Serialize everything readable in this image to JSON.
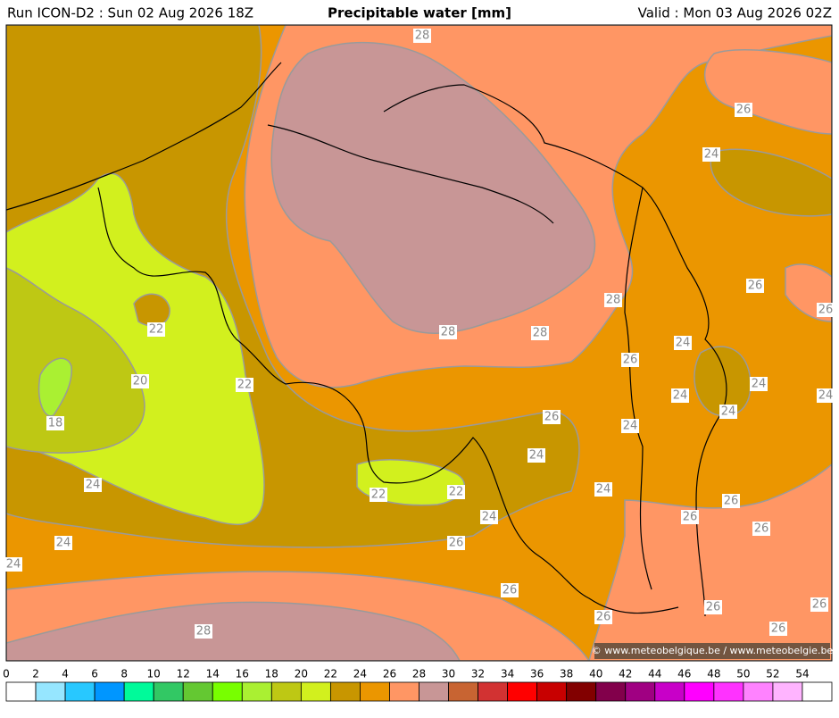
{
  "header": {
    "run": "Run ICON-D2 : Sun 02 Aug 2026 18Z",
    "title": "Precipitable water [mm]",
    "valid": "Valid : Mon 03 Aug 2026 02Z"
  },
  "contour_labels": [
    "28",
    "26",
    "24",
    "26",
    "28",
    "22",
    "28",
    "28",
    "24",
    "26",
    "20",
    "22",
    "24",
    "24",
    "24",
    "24",
    "26",
    "24",
    "18",
    "24",
    "24",
    "22",
    "22",
    "24",
    "24",
    "26",
    "26",
    "26",
    "24",
    "26",
    "24",
    "26",
    "26",
    "26",
    "26",
    "26",
    "28",
    "26"
  ],
  "copyright": "© www.meteobelgique.be / www.meteobelgie.be",
  "colorbar": {
    "ticks": [
      0,
      2,
      4,
      6,
      8,
      10,
      12,
      14,
      16,
      18,
      20,
      22,
      24,
      26,
      28,
      30,
      32,
      34,
      36,
      38,
      40,
      42,
      44,
      46,
      48,
      50,
      52,
      54
    ],
    "colors": [
      "#ffffff",
      "#96e6ff",
      "#28c8ff",
      "#0096ff",
      "#00fa9a",
      "#32c864",
      "#64c832",
      "#78ff00",
      "#aaf032",
      "#bec814",
      "#d2f01e",
      "#c89600",
      "#eb9600",
      "#ff9664",
      "#c89696",
      "#c86432",
      "#d23232",
      "#ff0000",
      "#c80000",
      "#820000",
      "#82004b",
      "#a00082",
      "#c800c8",
      "#ff00ff",
      "#ff32ff",
      "#ff82ff",
      "#ffb4ff",
      "#ffffff"
    ]
  }
}
